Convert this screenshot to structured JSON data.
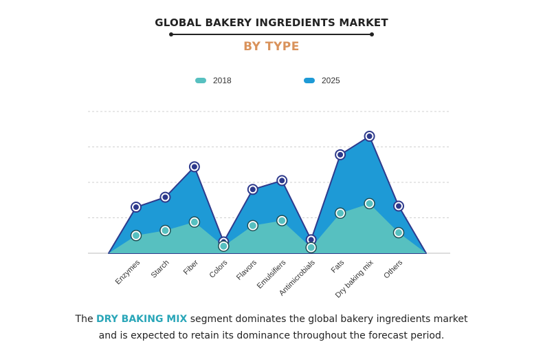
{
  "header": {
    "title": "GLOBAL BAKERY INGREDIENTS MARKET",
    "subtitle": "BY TYPE"
  },
  "colors": {
    "series_2018": "#57c0c0",
    "series_2025": "#1e9ad6",
    "outline": "#2e3a8c",
    "subtitle": "#d9925b",
    "highlight": "#2aa6b8"
  },
  "chart_data": {
    "type": "area",
    "categories": [
      "Enzymes",
      "Starch",
      "Fiber",
      "Colors",
      "Flavors",
      "Emulsifiers",
      "Antimicrobials",
      "Fats",
      "Dry baking mix",
      "Others"
    ],
    "series": [
      {
        "name": "2018",
        "values": [
          0.5,
          0.64,
          0.88,
          0.2,
          0.78,
          0.92,
          0.16,
          1.13,
          1.4,
          0.58
        ]
      },
      {
        "name": "2025",
        "values": [
          1.3,
          1.58,
          2.44,
          0.32,
          1.8,
          2.05,
          0.38,
          2.78,
          3.3,
          1.33
        ]
      }
    ],
    "baseline_start": 0,
    "baseline_end": 0,
    "ylim": [
      0,
      4
    ],
    "yticks": [
      0,
      1,
      2,
      3,
      4
    ],
    "ytick_labels_shown": false,
    "grid": true,
    "legend_position": "top-center",
    "xtick_rotation": -45
  },
  "footer": {
    "pre": "The ",
    "highlight": "DRY BAKING MIX",
    "post_line1": " segment dominates the global bakery ingredients market",
    "line2": "and is expected to retain its dominance throughout the forecast period."
  }
}
